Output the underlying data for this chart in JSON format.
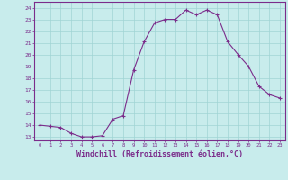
{
  "x": [
    0,
    1,
    2,
    3,
    4,
    5,
    6,
    7,
    8,
    9,
    10,
    11,
    12,
    13,
    14,
    15,
    16,
    17,
    18,
    19,
    20,
    21,
    22,
    23
  ],
  "y": [
    14.0,
    13.9,
    13.8,
    13.3,
    13.0,
    13.0,
    13.1,
    14.5,
    14.8,
    18.7,
    21.1,
    22.7,
    23.0,
    23.0,
    23.8,
    23.4,
    23.8,
    23.4,
    21.1,
    20.0,
    19.0,
    17.3,
    16.6,
    16.3
  ],
  "line_color": "#7b2d8b",
  "marker": "+",
  "marker_size": 3,
  "bg_color": "#c8ecec",
  "grid_color": "#a0d4d4",
  "xlabel": "Windchill (Refroidissement éolien,°C)",
  "xlabel_fontsize": 6.0,
  "xtick_labels": [
    "0",
    "1",
    "2",
    "3",
    "4",
    "5",
    "6",
    "7",
    "8",
    "9",
    "10",
    "11",
    "12",
    "13",
    "14",
    "15",
    "16",
    "17",
    "18",
    "19",
    "20",
    "21",
    "22",
    "23"
  ],
  "ytick_labels": [
    "13",
    "14",
    "15",
    "16",
    "17",
    "18",
    "19",
    "20",
    "21",
    "22",
    "23",
    "24"
  ],
  "ylim": [
    12.7,
    24.5
  ],
  "xlim": [
    -0.5,
    23.5
  ],
  "axis_color": "#7b2d8b",
  "tick_color": "#7b2d8b",
  "label_color": "#7b2d8b"
}
